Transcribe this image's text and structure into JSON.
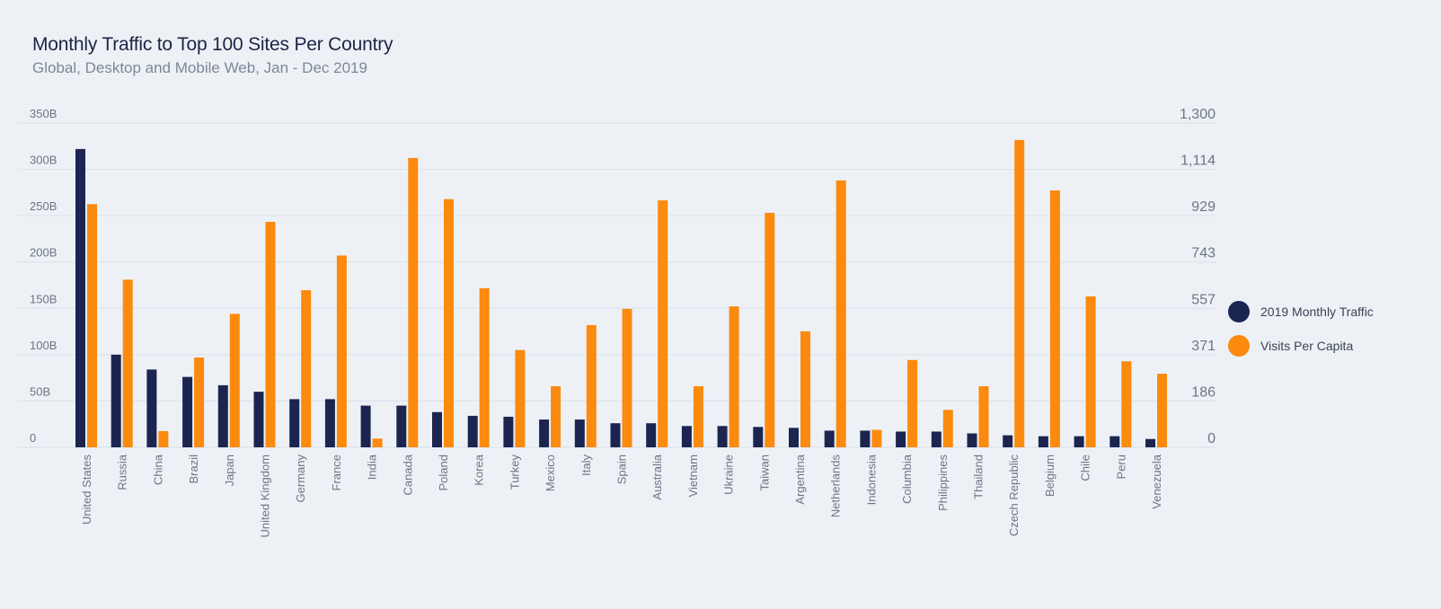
{
  "title": "Monthly Traffic to Top 100 Sites Per Country",
  "subtitle": "Global, Desktop and Mobile Web, Jan - Dec 2019",
  "legend": {
    "series1_label": "2019 Monthly Traffic",
    "series2_label": "Visits Per Capita"
  },
  "colors": {
    "traffic": "#1b2550",
    "per_capita": "#fb8a0e",
    "grid": "#d9e0e8",
    "axis_text": "#6b7584"
  },
  "chart_data": {
    "type": "bar",
    "title": "Monthly Traffic to Top 100 Sites Per Country",
    "subtitle": "Global, Desktop and Mobile Web, Jan - Dec 2019",
    "categories": [
      "United States",
      "Russia",
      "China",
      "Brazil",
      "Japan",
      "United Kingdom",
      "Germany",
      "France",
      "India",
      "Canada",
      "Poland",
      "Korea",
      "Turkey",
      "Mexico",
      "Italy",
      "Spain",
      "Australia",
      "Vietnam",
      "Ukraine",
      "Taiwan",
      "Argentina",
      "Netherlands",
      "Indonesia",
      "Columbia",
      "Philippines",
      "Thailand",
      "Czech Republic",
      "Belgium",
      "Chile",
      "Peru",
      "Venezuela"
    ],
    "series": [
      {
        "name": "2019 Monthly Traffic",
        "axis": "left",
        "unit": "B",
        "values": [
          322,
          100,
          84,
          76,
          67,
          60,
          52,
          52,
          45,
          45,
          38,
          34,
          33,
          30,
          30,
          26,
          26,
          23,
          23,
          22,
          21,
          18,
          18,
          17,
          17,
          15,
          13,
          12,
          12,
          12,
          9
        ]
      },
      {
        "name": "Visits Per Capita",
        "axis": "right",
        "values": [
          975,
          672,
          65,
          360,
          535,
          904,
          630,
          769,
          35,
          1160,
          995,
          638,
          390,
          245,
          490,
          555,
          990,
          245,
          565,
          940,
          465,
          1070,
          70,
          350,
          150,
          245,
          1232,
          1030,
          605,
          345,
          295
        ]
      }
    ],
    "y_left": {
      "min": 0,
      "max": 350,
      "ticks": [
        "0",
        "50B",
        "100B",
        "150B",
        "200B",
        "250B",
        "300B",
        "350B"
      ]
    },
    "y_right": {
      "min": 0,
      "max": 1300,
      "ticks": [
        "0",
        "186",
        "371",
        "557",
        "743",
        "929",
        "1,114",
        "1,300"
      ]
    },
    "grid": true,
    "legend_position": "right"
  }
}
